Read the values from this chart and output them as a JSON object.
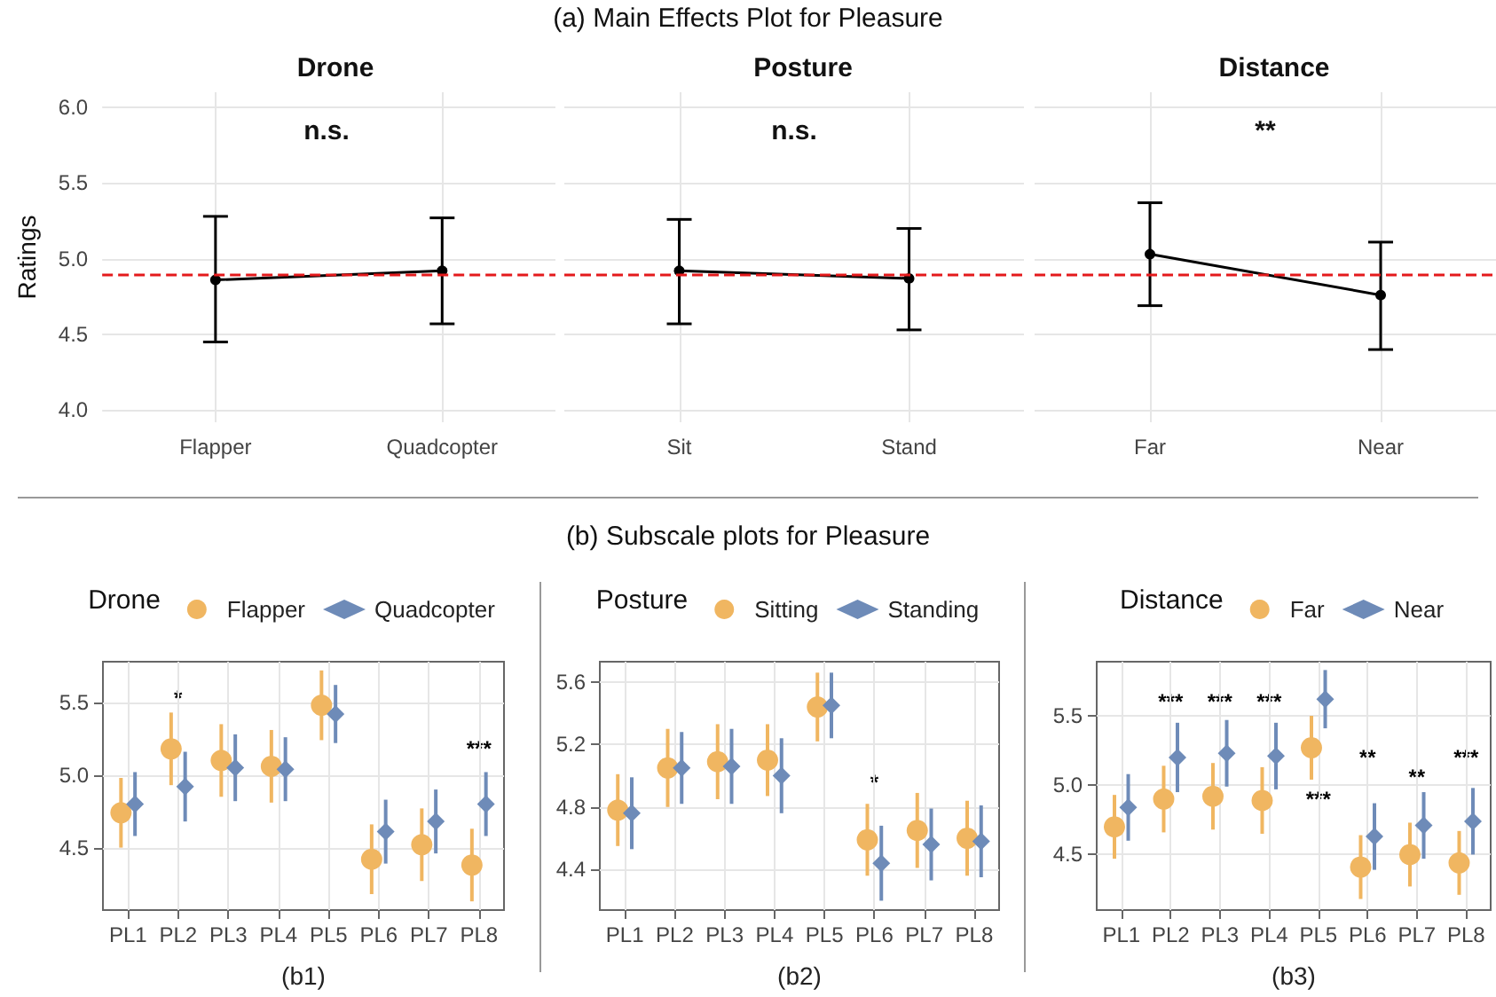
{
  "chart_data": [
    {
      "type": "line",
      "subtitle": "Drone",
      "ylabel": "Ratings",
      "categories": [
        "Flapper",
        "Quadcopter"
      ],
      "values": [
        4.86,
        4.92
      ],
      "errors": [
        [
          4.45,
          5.28
        ],
        [
          4.57,
          5.27
        ]
      ],
      "color": "#000000",
      "marker": "circle",
      "line_style": "solid",
      "ylim": [
        3.92,
        6.1
      ],
      "yticks": [
        {
          "value": 4,
          "label": "4.0"
        },
        4.5,
        {
          "value": 5,
          "label": "5.0"
        },
        5.5,
        {
          "value": 6,
          "label": "6.0"
        }
      ],
      "grid": true,
      "ref_lines": [
        {
          "axis": "y",
          "value": 4.89,
          "color": "#e41a1c",
          "line_style": "dashed"
        }
      ],
      "annotations": [
        "(a) Main Effects Plot for Pleasure",
        "n.s."
      ]
    },
    {
      "type": "line",
      "subtitle": "Posture",
      "categories": [
        "Sit",
        "Stand"
      ],
      "values": [
        4.92,
        4.87
      ],
      "errors": [
        [
          4.57,
          5.26
        ],
        [
          4.53,
          5.2
        ]
      ],
      "color": "#000000",
      "marker": "circle",
      "line_style": "solid",
      "ylim": [
        3.92,
        6.1
      ],
      "yticks": [
        4,
        4.5,
        5,
        5.5,
        6
      ],
      "grid": true,
      "tick_labels": "x",
      "ref_lines": [
        {
          "axis": "y",
          "value": 4.89,
          "color": "#e41a1c",
          "line_style": "dashed"
        }
      ],
      "annotations": [
        "n.s."
      ]
    },
    {
      "type": "line",
      "subtitle": "Distance",
      "categories": [
        "Far",
        "Near"
      ],
      "values": [
        5.03,
        4.76
      ],
      "errors": [
        [
          4.69,
          5.37
        ],
        [
          4.4,
          5.11
        ]
      ],
      "color": "#000000",
      "marker": "circle",
      "line_style": "solid",
      "ylim": [
        3.92,
        6.1
      ],
      "yticks": [
        4,
        4.5,
        5,
        5.5,
        6
      ],
      "grid": true,
      "tick_labels": "x",
      "ref_lines": [
        {
          "axis": "y",
          "value": 4.89,
          "color": "#e41a1c",
          "line_style": "dashed"
        }
      ],
      "annotations": [
        "**"
      ]
    },
    {
      "type": "scatter",
      "legend_title": "Drone",
      "xlabel": "(b1)",
      "categories": [
        "PL1",
        "PL2",
        "PL3",
        "PL4",
        "PL5",
        "PL6",
        "PL7",
        "PL8"
      ],
      "series": [
        {
          "name": "Flapper",
          "color": "#f0b661",
          "marker": "circle",
          "values": [
            4.74,
            5.18,
            5.1,
            5.06,
            5.48,
            4.42,
            4.52,
            4.38
          ],
          "errors": [
            0.24,
            0.25,
            0.25,
            0.25,
            0.24,
            0.24,
            0.25,
            0.25
          ]
        },
        {
          "name": "Quadcopter",
          "color": "#6e8bb8",
          "marker": "diamond",
          "values": [
            4.8,
            4.92,
            5.05,
            5.04,
            5.42,
            4.61,
            4.68,
            4.8
          ],
          "errors": [
            0.22,
            0.24,
            0.23,
            0.22,
            0.2,
            0.22,
            0.22,
            0.22
          ]
        }
      ],
      "ylim": [
        4.07,
        5.78
      ],
      "yticks": [
        4.5,
        {
          "value": 5,
          "label": "5.0"
        },
        5.5
      ],
      "grid": true,
      "legend": "top",
      "annotations": [
        "(b) Subscale plots for Pleasure",
        "*",
        "***"
      ]
    },
    {
      "type": "scatter",
      "legend_title": "Posture",
      "xlabel": "(b2)",
      "categories": [
        "PL1",
        "PL2",
        "PL3",
        "PL4",
        "PL5",
        "PL6",
        "PL7",
        "PL8"
      ],
      "series": [
        {
          "name": "Sitting",
          "color": "#f0b661",
          "marker": "circle",
          "values": [
            4.78,
            5.05,
            5.09,
            5.1,
            5.44,
            4.59,
            4.65,
            4.6
          ],
          "errors": [
            0.23,
            0.25,
            0.24,
            0.23,
            0.22,
            0.23,
            0.24,
            0.24
          ]
        },
        {
          "name": "Standing",
          "color": "#6e8bb8",
          "marker": "diamond",
          "values": [
            4.76,
            5.05,
            5.06,
            5.0,
            5.45,
            4.44,
            4.56,
            4.58
          ],
          "errors": [
            0.23,
            0.23,
            0.24,
            0.24,
            0.21,
            0.24,
            0.23,
            0.23
          ]
        }
      ],
      "ylim": [
        4.14,
        5.73
      ],
      "yticks": [
        4.4,
        4.8,
        5.2,
        5.6
      ],
      "grid": true,
      "legend": "top",
      "annotations": [
        "*"
      ]
    },
    {
      "type": "scatter",
      "legend_title": "Distance",
      "xlabel": "(b3)",
      "categories": [
        "PL1",
        "PL2",
        "PL3",
        "PL4",
        "PL5",
        "PL6",
        "PL7",
        "PL8"
      ],
      "series": [
        {
          "name": "Far",
          "color": "#f0b661",
          "marker": "circle",
          "values": [
            4.7,
            4.9,
            4.92,
            4.89,
            5.27,
            4.41,
            4.5,
            4.44
          ],
          "errors": [
            0.23,
            0.24,
            0.24,
            0.24,
            0.23,
            0.23,
            0.23,
            0.23
          ]
        },
        {
          "name": "Near",
          "color": "#6e8bb8",
          "marker": "diamond",
          "values": [
            4.84,
            5.2,
            5.23,
            5.21,
            5.62,
            4.63,
            4.71,
            4.74
          ],
          "errors": [
            0.24,
            0.25,
            0.24,
            0.24,
            0.21,
            0.24,
            0.24,
            0.24
          ]
        }
      ],
      "ylim": [
        4.1,
        5.89
      ],
      "yticks": [
        4.5,
        {
          "value": 5,
          "label": "5.0"
        },
        5.5
      ],
      "grid": true,
      "legend": "top",
      "annotations": [
        "***",
        "***",
        "***",
        "***",
        "**",
        "**",
        "***"
      ]
    }
  ]
}
